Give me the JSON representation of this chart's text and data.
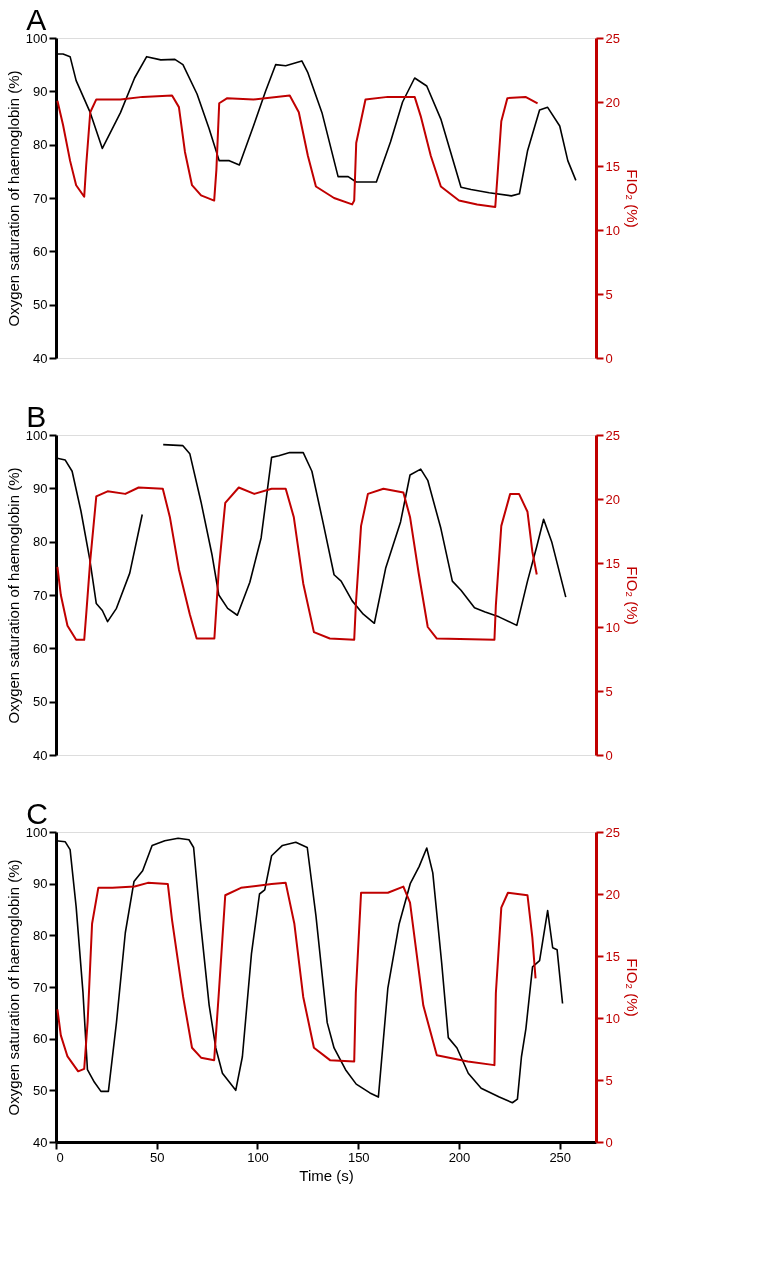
{
  "chart_data": [
    {
      "type": "line",
      "title": "A",
      "ylabel": "Oxygen saturation of haemoglobin (%)",
      "y2label": "FIO₂ (%)",
      "xlim": [
        0,
        268
      ],
      "xticks": [
        0,
        50,
        100,
        150,
        200,
        250
      ],
      "ylim": [
        40,
        100
      ],
      "yticks": [
        40,
        50,
        60,
        70,
        80,
        90,
        100
      ],
      "y2lim": [
        0,
        25
      ],
      "y2ticks": [
        0,
        5,
        10,
        15,
        20,
        25
      ],
      "tick_labels": "y",
      "grid": false,
      "series": [
        {
          "color": "#000000",
          "x": [
            0,
            3.5,
            7,
            10,
            17,
            23,
            32,
            39,
            45,
            52,
            59,
            63,
            70,
            76,
            81,
            86,
            91,
            98,
            104,
            109,
            114,
            122,
            125,
            132,
            140,
            145,
            149,
            159,
            166,
            172,
            178,
            184,
            191,
            201,
            206,
            215,
            226,
            230,
            234,
            240,
            244,
            250,
            254,
            258
          ],
          "values": [
            97,
            97,
            96.5,
            92,
            86,
            79.3,
            86,
            92.5,
            96.5,
            95.9,
            96,
            95,
            89.5,
            83,
            77,
            77,
            76.2,
            83.5,
            90,
            95,
            94.8,
            95.7,
            93.5,
            86,
            74,
            74,
            73,
            73,
            80.5,
            88,
            92.5,
            91,
            84.8,
            72,
            71.6,
            71,
            70.4,
            70.8,
            78.8,
            86.5,
            87,
            83.5,
            77,
            73.3
          ]
        },
        {
          "color": "#c00000",
          "axis": "y2",
          "x": [
            0.7,
            3.5,
            7,
            10,
            14,
            15,
            17,
            20,
            32,
            43,
            57.6,
            61,
            64,
            67.5,
            72,
            78.5,
            79.6,
            81,
            85,
            98,
            116,
            120.5,
            125,
            129,
            138,
            147,
            148,
            149,
            153.6,
            164.7,
            178,
            181,
            186,
            191,
            200,
            209,
            218,
            219,
            221,
            224,
            233,
            239
          ],
          "values": [
            20.1,
            18.2,
            15.4,
            13.5,
            12.6,
            15.1,
            19.2,
            20.2,
            20.2,
            20.4,
            20.5,
            19.6,
            16.1,
            13.5,
            12.7,
            12.3,
            14.7,
            19.9,
            20.3,
            20.2,
            20.5,
            19.2,
            15.8,
            13.4,
            12.5,
            12,
            12.3,
            16.8,
            20.2,
            20.4,
            20.4,
            18.9,
            15.8,
            13.4,
            12.3,
            12,
            11.8,
            14,
            18.5,
            20.3,
            20.4,
            19.9
          ]
        }
      ]
    },
    {
      "type": "line",
      "title": "B",
      "ylabel": "Oxygen saturation of haemoglobin (%)",
      "y2label": "FIO₂ (%)",
      "xlim": [
        0,
        268
      ],
      "xticks": [
        0,
        50,
        100,
        150,
        200,
        250
      ],
      "ylim": [
        40,
        100
      ],
      "yticks": [
        40,
        50,
        60,
        70,
        80,
        90,
        100
      ],
      "y2lim": [
        0,
        25
      ],
      "y2ticks": [
        0,
        5,
        10,
        15,
        20,
        25
      ],
      "tick_labels": "y",
      "grid": false,
      "series": [
        {
          "color": "#000000",
          "x": [
            0,
            4.6,
            8,
            12.4,
            16.8,
            20,
            23,
            25.6,
            30,
            36.6,
            42.8,
            48,
            53.2,
            63,
            66.4,
            72,
            77.5,
            80.8,
            85.2,
            90,
            96.2,
            101.8,
            107,
            110.6,
            116,
            122.7,
            127,
            132.7,
            138,
            141.5,
            147,
            152.5,
            158,
            163.6,
            171,
            175.7,
            181,
            184.5,
            191,
            196.7,
            201,
            207.7,
            213,
            219.8,
            228.7,
            234,
            238.6,
            242,
            246,
            253
          ],
          "values": [
            95.7,
            95.3,
            93.2,
            85.7,
            76.6,
            68.4,
            67.1,
            65,
            67.5,
            74.1,
            85.1,
            null,
            98.2,
            98,
            96.5,
            87.4,
            77.4,
            70,
            67.5,
            66.2,
            72.4,
            80.7,
            95.8,
            96.1,
            96.7,
            96.7,
            93.2,
            83.3,
            73.8,
            72.6,
            68.9,
            66.4,
            64.7,
            75,
            83.7,
            92.5,
            93.6,
            91.5,
            82.5,
            72.6,
            70.9,
            67.6,
            66.8,
            65.9,
            64.3,
            72.6,
            79.1,
            84.2,
            80,
            69.6
          ]
        },
        {
          "color": "#c00000",
          "axis": "y2",
          "x": [
            0.7,
            2.4,
            5.7,
            10,
            14,
            15,
            17,
            20,
            25.6,
            34.4,
            41,
            53,
            56.5,
            61,
            66.4,
            69.8,
            78.6,
            80.8,
            84,
            90.7,
            98.4,
            107,
            114,
            118,
            122.7,
            128,
            135.9,
            148,
            148.8,
            151.4,
            154.8,
            162.5,
            172.4,
            175.7,
            180,
            184.5,
            189,
            217.6,
            218.3,
            221,
            225.4,
            229.8,
            234,
            236.4,
            238.6
          ],
          "values": [
            14.7,
            12.5,
            10.1,
            9,
            9,
            11,
            15.2,
            20.2,
            20.6,
            20.4,
            20.9,
            20.8,
            18.6,
            14.5,
            11,
            9.1,
            9.1,
            14.5,
            19.7,
            20.9,
            20.4,
            20.8,
            20.8,
            18.6,
            13.4,
            9.6,
            9.1,
            9,
            11.7,
            17.9,
            20.4,
            20.8,
            20.5,
            18.6,
            14.2,
            10,
            9.1,
            9,
            11.7,
            17.9,
            20.4,
            20.4,
            19,
            15.9,
            14.1
          ]
        }
      ]
    },
    {
      "type": "line",
      "title": "C",
      "xlabel": "Time (s)",
      "ylabel": "Oxygen saturation of haemoglobin (%)",
      "y2label": "FIO₂ (%)",
      "xlim": [
        0,
        268
      ],
      "xticks": [
        0,
        50,
        100,
        150,
        200,
        250
      ],
      "ylim": [
        40,
        100
      ],
      "yticks": [
        40,
        50,
        60,
        70,
        80,
        90,
        100
      ],
      "y2lim": [
        0,
        25
      ],
      "y2ticks": [
        0,
        5,
        10,
        15,
        20,
        25
      ],
      "grid": false,
      "series": [
        {
          "color": "#000000",
          "x": [
            0,
            4.6,
            7,
            10,
            13.4,
            15.6,
            19,
            22.3,
            26,
            30,
            34.4,
            38.7,
            43,
            47.7,
            54,
            60.6,
            66,
            68.3,
            71.6,
            76,
            79.3,
            82.6,
            89.2,
            92.5,
            97,
            101,
            103.6,
            107,
            112.4,
            119,
            124.7,
            129,
            134.6,
            138,
            143.7,
            149,
            155.8,
            160,
            164.7,
            170.3,
            175.8,
            180.2,
            184,
            187,
            191.4,
            194.7,
            199,
            204.6,
            211,
            220,
            226.5,
            229,
            231,
            233.2,
            236.5,
            240,
            244,
            246.5,
            248.7,
            251.4
          ],
          "values": [
            98.3,
            98.1,
            96.6,
            85.5,
            68.9,
            54,
            51.6,
            49.8,
            49.8,
            63.1,
            80.5,
            90.4,
            92.5,
            97.4,
            98.3,
            98.8,
            98.5,
            97,
            83,
            66.5,
            58.2,
            53.3,
            50,
            56.5,
            76.4,
            88,
            88.8,
            95.4,
            97.4,
            98,
            97,
            83.8,
            63.1,
            58.2,
            54,
            51.2,
            49.5,
            48.7,
            69.8,
            82.2,
            90,
            93.3,
            96.9,
            92.1,
            74.7,
            60.2,
            58.2,
            53.3,
            50.4,
            48.7,
            47.6,
            48.3,
            56.5,
            61.9,
            73.9,
            75.1,
            84.8,
            77.6,
            77.2,
            66.8
          ]
        },
        {
          "color": "#c00000",
          "axis": "y2",
          "x": [
            0.7,
            2.4,
            5.7,
            11,
            14,
            15.7,
            17.9,
            21,
            28,
            39,
            45.6,
            55.5,
            57.6,
            63.1,
            67.5,
            72,
            78.5,
            80.8,
            84,
            91.8,
            107,
            114,
            118.3,
            122.7,
            128,
            136,
            148,
            148.8,
            151.4,
            164.7,
            172.4,
            175.7,
            182.3,
            189,
            204.4,
            217.6,
            218.3,
            221,
            224.3,
            234,
            236.4,
            238
          ],
          "values": [
            10.7,
            8.6,
            6.9,
            5.7,
            5.9,
            9.7,
            17.6,
            20.5,
            20.5,
            20.6,
            20.9,
            20.8,
            17.9,
            11.7,
            7.6,
            6.8,
            6.6,
            12,
            19.9,
            20.5,
            20.8,
            20.9,
            17.6,
            11.7,
            7.6,
            6.6,
            6.5,
            12,
            20.1,
            20.1,
            20.6,
            19.3,
            11,
            7,
            6.5,
            6.2,
            12,
            18.9,
            20.1,
            19.9,
            16.5,
            13.2
          ]
        }
      ]
    }
  ]
}
